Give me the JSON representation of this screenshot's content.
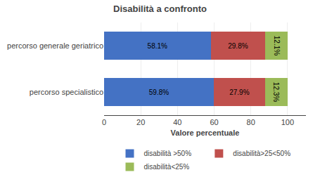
{
  "chart_data": {
    "type": "bar",
    "orientation": "horizontal",
    "stacked": true,
    "title": "Disabilità a confronto",
    "categories": [
      "percorso generale geriatrico",
      "percorso specialistico"
    ],
    "series": [
      {
        "name": "disabilità >50%",
        "color": "#4472C4",
        "values": [
          58.1,
          59.8
        ],
        "value_labels": [
          "58.1%",
          "59.8%"
        ]
      },
      {
        "name": "disabilità>25<50%",
        "color": "#C0504D",
        "values": [
          29.8,
          27.9
        ],
        "value_labels": [
          "29.8%",
          "27.9%"
        ]
      },
      {
        "name": "disabilità<25%",
        "color": "#9BBB59",
        "values": [
          12.1,
          12.3
        ],
        "value_labels": [
          "12.1%",
          "12.3%"
        ]
      }
    ],
    "xlabel": "Valore percentuale",
    "xlim": [
      0,
      110
    ],
    "xticks": [
      0,
      20,
      40,
      60,
      80,
      100
    ],
    "grid": true,
    "legend": "bottom",
    "data_labels": true
  }
}
